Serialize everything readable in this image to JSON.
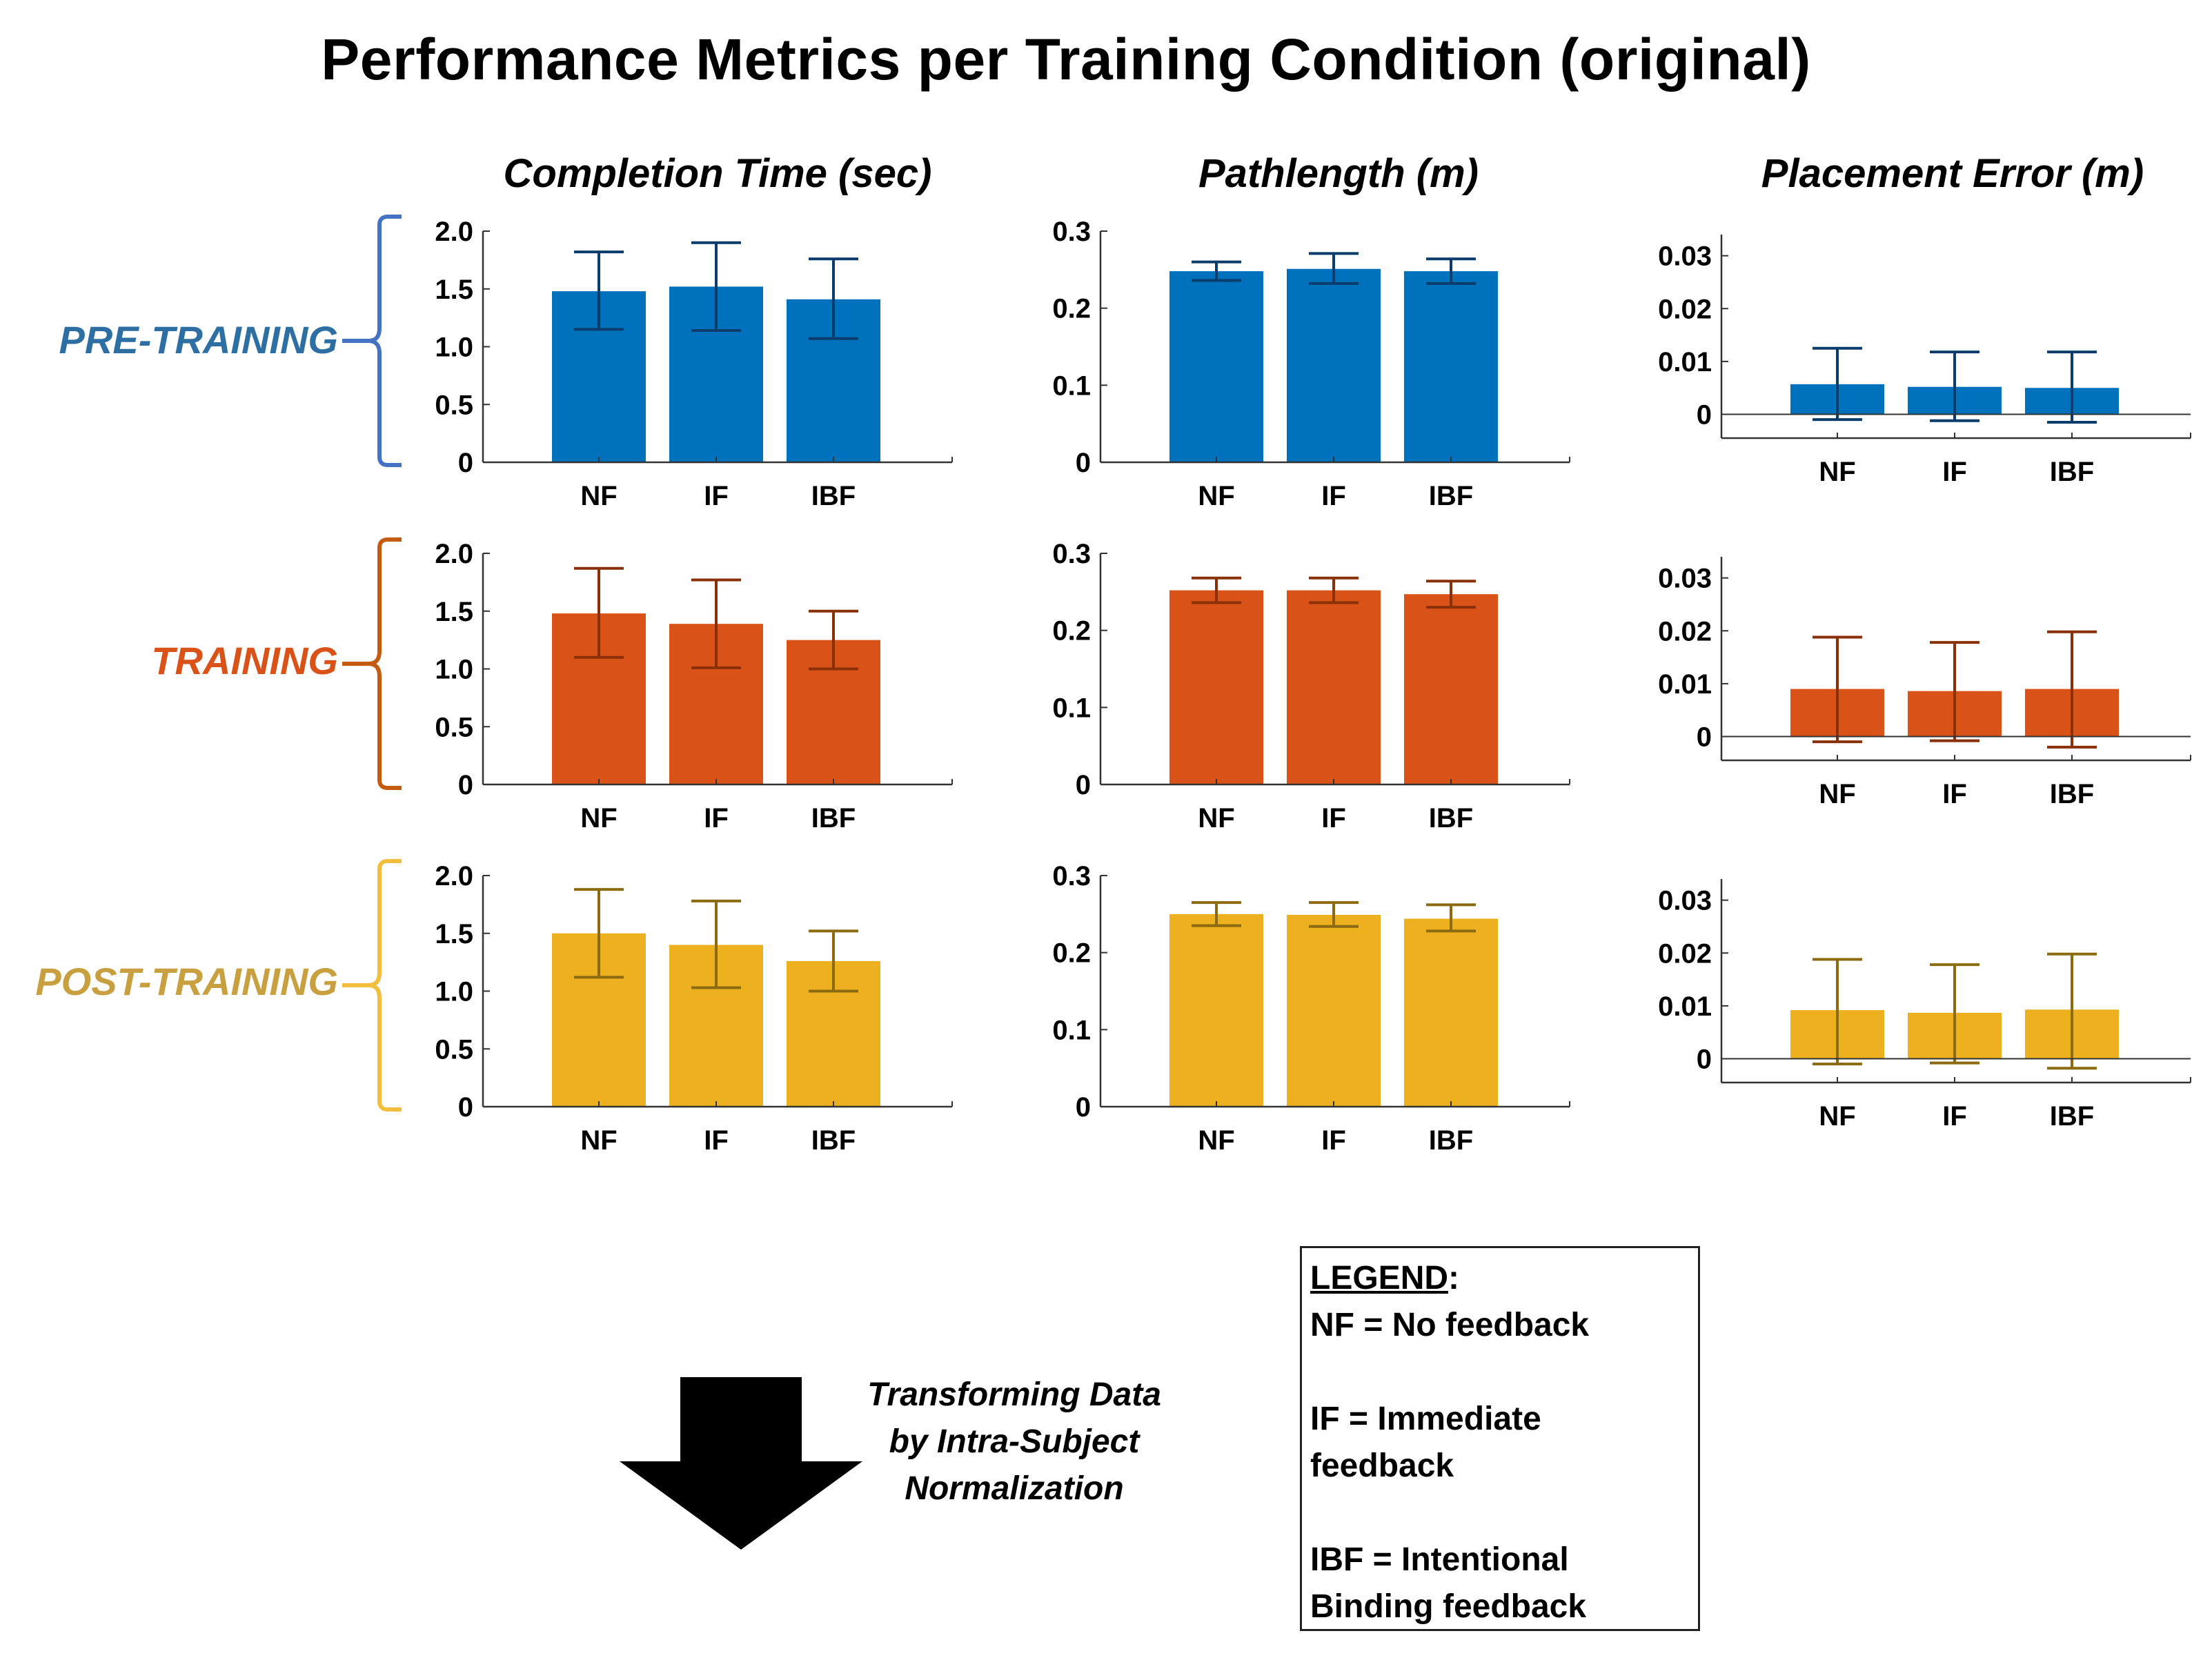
{
  "title": "Performance Metrics per Training Condition (original)",
  "column_headers": [
    "Completion Time (sec)",
    "Pathlength (m)",
    "Placement Error (m)"
  ],
  "row_labels": [
    "PRE-TRAINING",
    "TRAINING",
    "POST-TRAINING"
  ],
  "colors": {
    "pre": "#0072BD",
    "pre_err": "#0A3D6B",
    "pre_label": "#2E6FA3",
    "pre_bracket": "#4472C4",
    "training": "#D95319",
    "training_err": "#8A3008",
    "training_label": "#D95319",
    "training_bracket": "#C55A11",
    "post": "#EDB120",
    "post_err": "#8C6A10",
    "post_label": "#C8A040",
    "post_bracket": "#F2BE3C"
  },
  "legend": {
    "title": "LEGEND",
    "lines": [
      "NF = No feedback",
      "IF = Immediate",
      "feedback",
      "IBF = Intentional",
      "Binding feedback"
    ]
  },
  "transform_caption": [
    "Transforming Data",
    "by Intra-Subject",
    "Normalization"
  ],
  "chart_data": [
    {
      "type": "bar",
      "title": "Completion Time (sec)",
      "row": "PRE-TRAINING",
      "categories": [
        "NF",
        "IF",
        "IBF"
      ],
      "values": [
        1.48,
        1.52,
        1.41
      ],
      "err_low": [
        1.15,
        1.14,
        1.07
      ],
      "err_high": [
        1.82,
        1.9,
        1.76
      ],
      "ylim": [
        0,
        2.0
      ],
      "yticks": [
        0,
        0.5,
        1.0,
        1.5,
        2.0
      ],
      "ytick_labels": [
        "0",
        "0.5",
        "1.0",
        "1.5",
        "2.0"
      ]
    },
    {
      "type": "bar",
      "title": "Pathlength (m)",
      "row": "PRE-TRAINING",
      "categories": [
        "NF",
        "IF",
        "IBF"
      ],
      "values": [
        0.248,
        0.251,
        0.248
      ],
      "err_low": [
        0.236,
        0.232,
        0.232
      ],
      "err_high": [
        0.26,
        0.271,
        0.264
      ],
      "ylim": [
        0,
        0.3
      ],
      "yticks": [
        0,
        0.1,
        0.2,
        0.3
      ],
      "ytick_labels": [
        "0",
        "0.1",
        "0.2",
        "0.3"
      ]
    },
    {
      "type": "bar",
      "title": "Placement Error (m)",
      "row": "PRE-TRAINING",
      "categories": [
        "NF",
        "IF",
        "IBF"
      ],
      "values": [
        0.0057,
        0.0052,
        0.005
      ],
      "err_low": [
        -0.001,
        -0.0012,
        -0.0015
      ],
      "err_high": [
        0.0125,
        0.0118,
        0.0118
      ],
      "ylim": [
        -0.0045,
        0.034
      ],
      "yticks": [
        0,
        0.01,
        0.02,
        0.03
      ],
      "ytick_labels": [
        "0",
        "0.01",
        "0.02",
        "0.03"
      ]
    },
    {
      "type": "bar",
      "title": "Completion Time (sec)",
      "row": "TRAINING",
      "categories": [
        "NF",
        "IF",
        "IBF"
      ],
      "values": [
        1.48,
        1.39,
        1.25
      ],
      "err_low": [
        1.1,
        1.01,
        1.0
      ],
      "err_high": [
        1.87,
        1.77,
        1.5
      ],
      "ylim": [
        0,
        2.0
      ],
      "yticks": [
        0,
        0.5,
        1.0,
        1.5,
        2.0
      ],
      "ytick_labels": [
        "0",
        "0.5",
        "1.0",
        "1.5",
        "2.0"
      ]
    },
    {
      "type": "bar",
      "title": "Pathlength (m)",
      "row": "TRAINING",
      "categories": [
        "NF",
        "IF",
        "IBF"
      ],
      "values": [
        0.252,
        0.252,
        0.247
      ],
      "err_low": [
        0.236,
        0.236,
        0.23
      ],
      "err_high": [
        0.268,
        0.268,
        0.264
      ],
      "ylim": [
        0,
        0.3
      ],
      "yticks": [
        0,
        0.1,
        0.2,
        0.3
      ],
      "ytick_labels": [
        "0",
        "0.1",
        "0.2",
        "0.3"
      ]
    },
    {
      "type": "bar",
      "title": "Placement Error (m)",
      "row": "TRAINING",
      "categories": [
        "NF",
        "IF",
        "IBF"
      ],
      "values": [
        0.009,
        0.0086,
        0.009
      ],
      "err_low": [
        -0.001,
        -0.0008,
        -0.002
      ],
      "err_high": [
        0.0188,
        0.0178,
        0.0198
      ],
      "ylim": [
        -0.0045,
        0.034
      ],
      "yticks": [
        0,
        0.01,
        0.02,
        0.03
      ],
      "ytick_labels": [
        "0",
        "0.01",
        "0.02",
        "0.03"
      ]
    },
    {
      "type": "bar",
      "title": "Completion Time (sec)",
      "row": "POST-TRAINING",
      "categories": [
        "NF",
        "IF",
        "IBF"
      ],
      "values": [
        1.5,
        1.4,
        1.26
      ],
      "err_low": [
        1.12,
        1.03,
        1.0
      ],
      "err_high": [
        1.88,
        1.78,
        1.52
      ],
      "ylim": [
        0,
        2.0
      ],
      "yticks": [
        0,
        0.5,
        1.0,
        1.5,
        2.0
      ],
      "ytick_labels": [
        "0",
        "0.5",
        "1.0",
        "1.5",
        "2.0"
      ]
    },
    {
      "type": "bar",
      "title": "Pathlength (m)",
      "row": "POST-TRAINING",
      "categories": [
        "NF",
        "IF",
        "IBF"
      ],
      "values": [
        0.25,
        0.249,
        0.244
      ],
      "err_low": [
        0.235,
        0.234,
        0.228
      ],
      "err_high": [
        0.265,
        0.265,
        0.262
      ],
      "ylim": [
        0,
        0.3
      ],
      "yticks": [
        0,
        0.1,
        0.2,
        0.3
      ],
      "ytick_labels": [
        "0",
        "0.1",
        "0.2",
        "0.3"
      ]
    },
    {
      "type": "bar",
      "title": "Placement Error (m)",
      "row": "POST-TRAINING",
      "categories": [
        "NF",
        "IF",
        "IBF"
      ],
      "values": [
        0.0092,
        0.0087,
        0.0093
      ],
      "err_low": [
        -0.001,
        -0.0008,
        -0.0018
      ],
      "err_high": [
        0.0188,
        0.0178,
        0.0198
      ],
      "ylim": [
        -0.0045,
        0.034
      ],
      "yticks": [
        0,
        0.01,
        0.02,
        0.03
      ],
      "ytick_labels": [
        "0",
        "0.01",
        "0.02",
        "0.03"
      ]
    }
  ]
}
